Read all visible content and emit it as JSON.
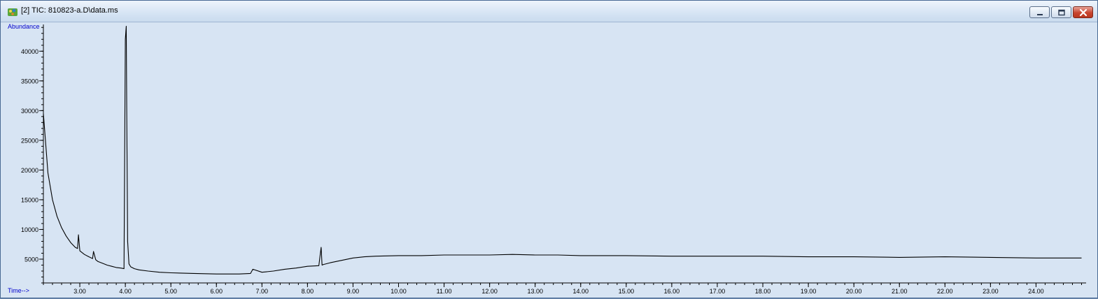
{
  "window": {
    "title": "[2] TIC: 810823-a.D\\data.ms",
    "icons": [
      "chromatogram-app-icon",
      "minimize-icon",
      "maximize-icon",
      "close-icon"
    ]
  },
  "colors": {
    "plot_background": "#d7e4f3",
    "axis_label": "#0000cc",
    "trace": "#000000",
    "close_button": "#c8452f"
  },
  "chart_data": {
    "type": "line",
    "title": "",
    "xlabel": "Time-->",
    "ylabel": "Abundance",
    "xlim": [
      2.2,
      25.1
    ],
    "ylim": [
      1000,
      44500
    ],
    "grid": false,
    "x_ticks": [
      3,
      4,
      5,
      6,
      7,
      8,
      9,
      10,
      11,
      12,
      13,
      14,
      15,
      16,
      17,
      18,
      19,
      20,
      21,
      22,
      23,
      24
    ],
    "x_tick_labels": [
      "3.00",
      "4.00",
      "5.00",
      "6.00",
      "7.00",
      "8.00",
      "9.00",
      "10.00",
      "11.00",
      "12.00",
      "13.00",
      "14.00",
      "15.00",
      "16.00",
      "17.00",
      "18.00",
      "19.00",
      "20.00",
      "21.00",
      "22.00",
      "23.00",
      "24.00"
    ],
    "y_ticks": [
      5000,
      10000,
      15000,
      20000,
      25000,
      30000,
      35000,
      40000
    ],
    "y_tick_labels": [
      "5000",
      "10000",
      "15000",
      "20000",
      "25000",
      "30000",
      "35000",
      "40000"
    ],
    "series": [
      {
        "x": [
          2.2,
          2.3,
          2.4,
          2.5,
          2.6,
          2.7,
          2.8,
          2.9,
          2.95,
          2.97,
          3.0,
          3.1,
          3.2,
          3.28,
          3.3,
          3.35,
          3.4,
          3.5,
          3.6,
          3.7,
          3.8,
          3.9,
          3.97,
          4.0,
          4.02,
          4.03,
          4.05,
          4.08,
          4.12,
          4.2,
          4.3,
          4.5,
          4.75,
          5.0,
          5.5,
          6.0,
          6.5,
          6.75,
          6.8,
          7.0,
          7.25,
          7.5,
          7.75,
          8.0,
          8.25,
          8.3,
          8.32,
          8.35,
          8.5,
          8.75,
          9.0,
          9.25,
          9.5,
          10.0,
          10.5,
          11.0,
          11.5,
          12.0,
          12.5,
          13.0,
          13.5,
          14.0,
          15.0,
          16.0,
          17.0,
          18.0,
          19.0,
          20.0,
          21.0,
          22.0,
          23.0,
          24.0,
          25.0
        ],
        "y": [
          29500,
          19500,
          15000,
          12200,
          10300,
          8900,
          7800,
          7000,
          6800,
          9100,
          6400,
          5800,
          5400,
          5100,
          6300,
          4900,
          4600,
          4300,
          4000,
          3800,
          3600,
          3500,
          3400,
          42000,
          44200,
          30000,
          8000,
          4200,
          3700,
          3400,
          3200,
          3000,
          2800,
          2700,
          2600,
          2500,
          2500,
          2600,
          3300,
          2800,
          3000,
          3300,
          3500,
          3800,
          3900,
          7000,
          4000,
          4100,
          4400,
          4800,
          5200,
          5400,
          5500,
          5600,
          5600,
          5700,
          5700,
          5700,
          5800,
          5700,
          5700,
          5600,
          5600,
          5500,
          5500,
          5500,
          5400,
          5400,
          5300,
          5400,
          5300,
          5200,
          5200
        ]
      }
    ]
  }
}
